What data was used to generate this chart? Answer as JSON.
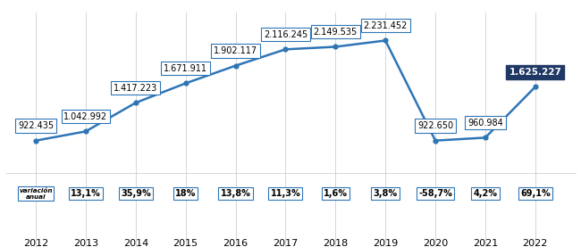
{
  "years": [
    2012,
    2013,
    2014,
    2015,
    2016,
    2017,
    2018,
    2019,
    2020,
    2021,
    2022
  ],
  "values": [
    922435,
    1042992,
    1417223,
    1671911,
    1902117,
    2116245,
    2149535,
    2231452,
    922650,
    960984,
    1625227
  ],
  "labels": [
    "922.435",
    "1.042.992",
    "1.417.223",
    "1.671.911",
    "1.902.117",
    "2.116.245",
    "2.149.535",
    "2.231.452",
    "922.650",
    "960.984",
    "1.625.227"
  ],
  "pct_labels": [
    "variación\nanual",
    "13,1%",
    "35,9%",
    "18%",
    "13,8%",
    "11,3%",
    "1,6%",
    "3,8%",
    "-58,7%",
    "4,2%",
    "69,1%"
  ],
  "line_color": "#2e75b6",
  "marker_color": "#2e75b6",
  "last_box_facecolor": "#1f3864",
  "last_box_edgecolor": "#1f3864",
  "box_facecolor": "white",
  "box_edgecolor": "#2e75b6",
  "ylim": [
    500000,
    2600000
  ],
  "xlim": [
    2011.4,
    2022.8
  ]
}
